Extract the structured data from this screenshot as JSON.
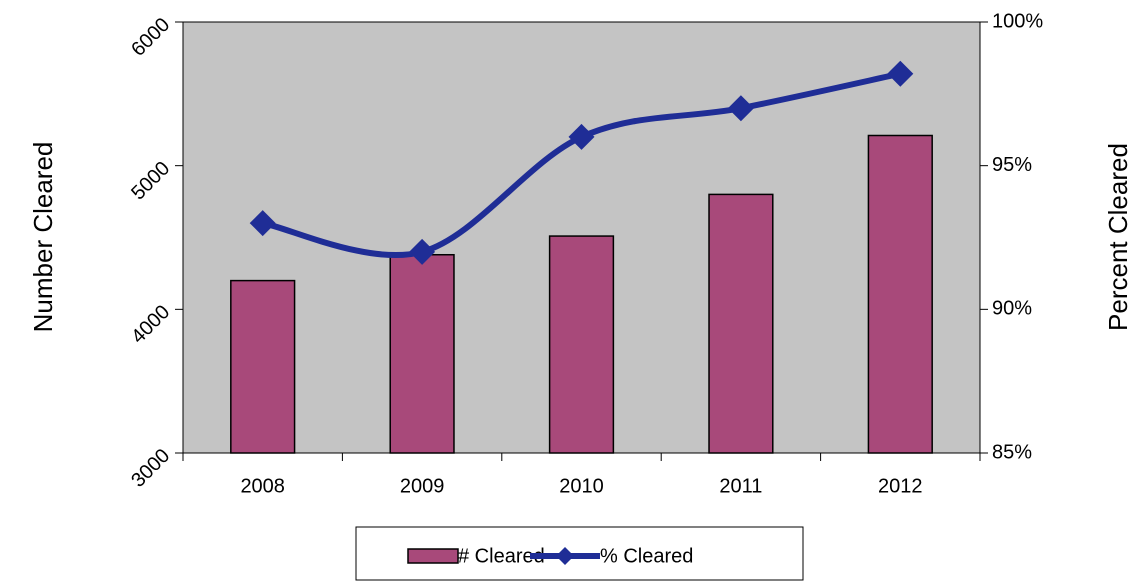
{
  "chart_data": {
    "type": "bar",
    "categories": [
      "2008",
      "2009",
      "2010",
      "2011",
      "2012"
    ],
    "series": [
      {
        "name": "# Cleared",
        "type": "bar",
        "color": "#a8497a",
        "values": [
          4200,
          4380,
          4510,
          4800,
          5210
        ]
      },
      {
        "name": "% Cleared",
        "type": "line",
        "axis": "y2",
        "color": "#1f2d96",
        "values": [
          93,
          92,
          96,
          97,
          98.2
        ]
      }
    ],
    "ylabel": "Number Cleared",
    "y2label": "Percent Cleared",
    "ylim": [
      3000,
      6000
    ],
    "yticks": [
      3000,
      4000,
      5000,
      6000
    ],
    "y2lim": [
      85,
      100
    ],
    "y2ticks": [
      {
        "value": 85,
        "label": "85%"
      },
      {
        "value": 90,
        "label": "90%"
      },
      {
        "value": 95,
        "label": "95%"
      },
      {
        "value": 100,
        "label": "100%"
      }
    ],
    "plot_background": "#c4c4c4",
    "legend": "bottom"
  }
}
